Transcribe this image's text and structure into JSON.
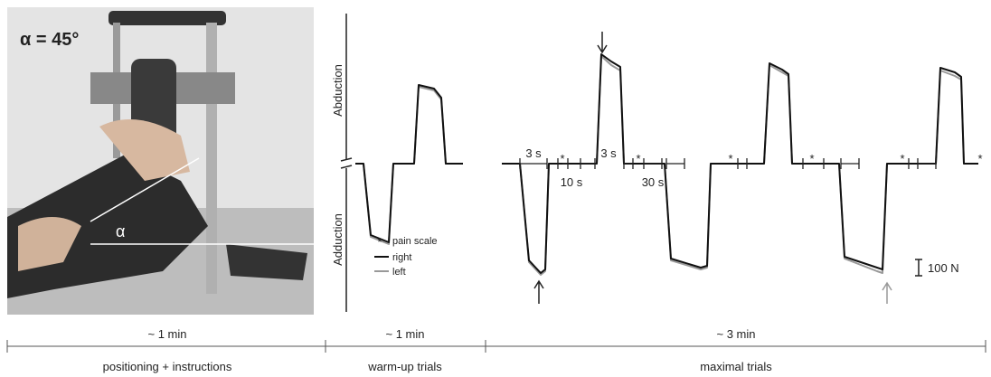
{
  "photo": {
    "angle_label": "α = 45°",
    "angle_symbol": "α"
  },
  "axis": {
    "upper": "Abduction",
    "lower": "Adduction"
  },
  "intervals": [
    "3 s",
    "10 s",
    "3 s",
    "30 s"
  ],
  "markers": [
    "*",
    "*",
    "*",
    "*",
    "*",
    "*"
  ],
  "legend": {
    "symbol": "*",
    "items": [
      "pain scale",
      "right",
      "left"
    ]
  },
  "scale_bar": "100 N",
  "timeline": {
    "durations": [
      "~ 1 min",
      "~ 1 min",
      "~ 3 min"
    ],
    "phases": [
      "positioning + instructions",
      "warm-up trials",
      "maximal trials"
    ]
  }
}
